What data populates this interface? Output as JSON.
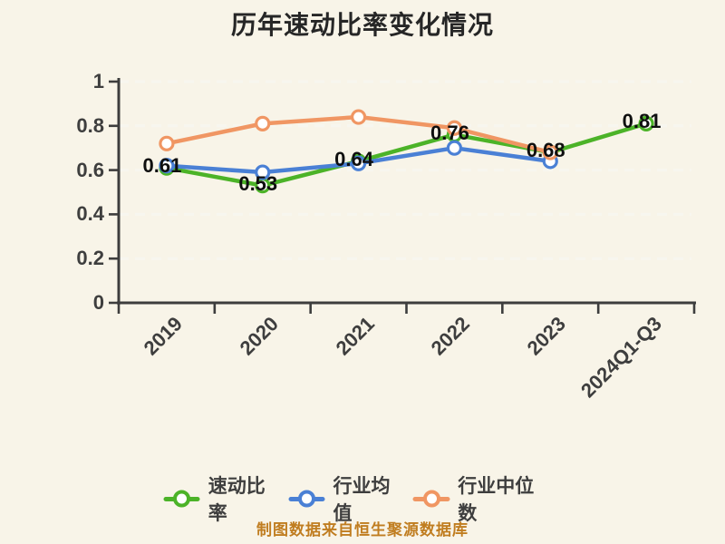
{
  "title": "历年速动比率变化情况",
  "chart_data": {
    "type": "line",
    "title": "历年速动比率变化情况",
    "categories": [
      "2019",
      "2020",
      "2021",
      "2022",
      "2023",
      "2024Q1-Q3"
    ],
    "series": [
      {
        "key": "quick-ratio",
        "name": "速动比率",
        "color": "#4cb328",
        "values": [
          0.61,
          0.53,
          0.64,
          0.76,
          0.68,
          0.81
        ],
        "point_labels": [
          "0.61",
          "0.53",
          "0.64",
          "0.76",
          "0.68",
          "0.81"
        ]
      },
      {
        "key": "industry-average",
        "name": "行业均值",
        "color": "#4a80d5",
        "values": [
          0.62,
          0.59,
          0.63,
          0.7,
          0.64
        ],
        "point_labels": []
      },
      {
        "key": "industry-median",
        "name": "行业中位数",
        "color": "#f09663",
        "values": [
          0.72,
          0.81,
          0.84,
          0.79,
          0.68
        ],
        "point_labels": []
      }
    ],
    "xlabel": "",
    "ylabel": "",
    "ylim": [
      0,
      1
    ],
    "yticks": [
      "0",
      "0.2",
      "0.4",
      "0.6",
      "0.8",
      "1"
    ],
    "grid": "horizontal-dashed",
    "legend_position": "bottom",
    "marker": "circle-white-fill"
  },
  "legend": {
    "items": [
      "速动比率",
      "行业均值",
      "行业中位数"
    ]
  },
  "footer": {
    "text": "制图数据来自恒生聚源数据库"
  },
  "colors": {
    "background": "#f8f4e8",
    "axis": "#3d3d3d",
    "gridline": "#f7f6ef",
    "title_text": "#262626",
    "tick_text": "#3e3e3e",
    "data_label_text": "#0f0f0f",
    "footer_text": "#c07d20",
    "marker_fill": "#ffffff"
  }
}
